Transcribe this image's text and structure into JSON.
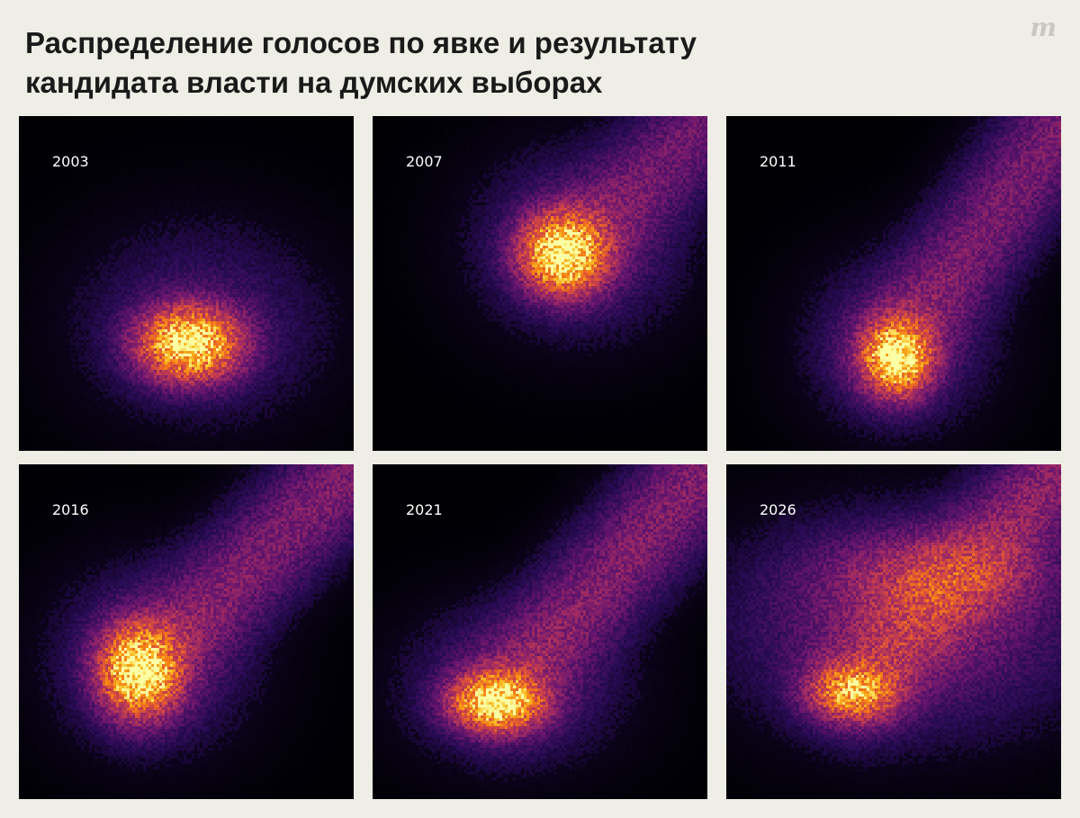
{
  "header": {
    "title_line1": "Распределение голосов по явке и результату",
    "title_line2": "кандидата власти на думских выборах",
    "logo": "m"
  },
  "colors": {
    "background": "#efeee6",
    "panel_background": "#000004",
    "colormap": "inferno"
  },
  "chart_data": {
    "type": "heatmap",
    "x_quantity": "turnout",
    "y_quantity": "ruling-party candidate vote share",
    "grid": false,
    "legend": "none",
    "panels": [
      {
        "label": "2003",
        "blobs": [
          {
            "x": 0.51,
            "y": 0.32,
            "sx": 0.09,
            "sy": 0.065,
            "w": 1.0
          },
          {
            "x": 0.55,
            "y": 0.38,
            "sx": 0.2,
            "sy": 0.16,
            "w": 0.06
          }
        ],
        "tail": []
      },
      {
        "label": "2007",
        "blobs": [
          {
            "x": 0.57,
            "y": 0.59,
            "sx": 0.075,
            "sy": 0.07,
            "w": 1.0
          },
          {
            "x": 0.62,
            "y": 0.62,
            "sx": 0.17,
            "sy": 0.15,
            "w": 0.08
          }
        ],
        "tail": [
          {
            "x0": 0.6,
            "y0": 0.6,
            "x1": 0.99,
            "y1": 0.98,
            "w": 0.12
          }
        ]
      },
      {
        "label": "2011",
        "blobs": [
          {
            "x": 0.51,
            "y": 0.28,
            "sx": 0.06,
            "sy": 0.065,
            "w": 1.0
          },
          {
            "x": 0.52,
            "y": 0.32,
            "sx": 0.15,
            "sy": 0.14,
            "w": 0.07
          }
        ],
        "tail": [
          {
            "x0": 0.5,
            "y0": 0.3,
            "x1": 0.99,
            "y1": 0.96,
            "w": 0.14
          }
        ]
      },
      {
        "label": "2016",
        "blobs": [
          {
            "x": 0.36,
            "y": 0.38,
            "sx": 0.07,
            "sy": 0.08,
            "w": 1.0
          },
          {
            "x": 0.4,
            "y": 0.42,
            "sx": 0.16,
            "sy": 0.15,
            "w": 0.08
          }
        ],
        "tail": [
          {
            "x0": 0.4,
            "y0": 0.42,
            "x1": 0.99,
            "y1": 0.98,
            "w": 0.15
          }
        ]
      },
      {
        "label": "2021",
        "blobs": [
          {
            "x": 0.37,
            "y": 0.29,
            "sx": 0.08,
            "sy": 0.05,
            "w": 1.0
          },
          {
            "x": 0.42,
            "y": 0.34,
            "sx": 0.18,
            "sy": 0.13,
            "w": 0.07
          }
        ],
        "tail": [
          {
            "x0": 0.4,
            "y0": 0.33,
            "x1": 0.99,
            "y1": 0.98,
            "w": 0.16
          }
        ]
      },
      {
        "label": "2026",
        "blobs": [
          {
            "x": 0.38,
            "y": 0.32,
            "sx": 0.08,
            "sy": 0.05,
            "w": 0.6
          },
          {
            "x": 0.55,
            "y": 0.52,
            "sx": 0.28,
            "sy": 0.17,
            "w": 0.14
          },
          {
            "x": 0.63,
            "y": 0.67,
            "sx": 0.2,
            "sy": 0.08,
            "w": 0.2
          }
        ],
        "tail": [
          {
            "x0": 0.4,
            "y0": 0.35,
            "x1": 0.98,
            "y1": 0.96,
            "w": 0.18
          }
        ]
      }
    ]
  }
}
